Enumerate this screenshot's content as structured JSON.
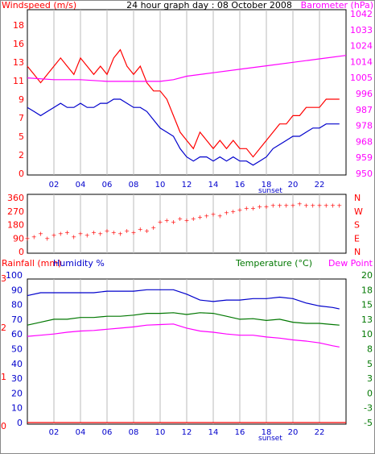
{
  "colors": {
    "wind": "#ff0000",
    "gust_avg": "#0000cc",
    "barometer": "#ff00ff",
    "direction": "#ff0000",
    "humidity": "#0000cc",
    "temperature": "#007700",
    "dewpoint": "#ff00ff",
    "rainfall": "#ff0000",
    "grid": "#bbbbbb",
    "right_axis_green": "#007700"
  },
  "chart_data": [
    {
      "type": "line",
      "title": "24 hour graph day : 08 October 2008",
      "left_axis_label": "Windspeed (m/s)",
      "right_axis_label": "Barometer (hPa)",
      "left_ticks": [
        "18",
        "16",
        "13",
        "11",
        "9",
        "7",
        "5",
        "2",
        "0"
      ],
      "left_range": [
        0,
        18
      ],
      "right_ticks": [
        "1042",
        "1033",
        "1024",
        "1014",
        "1005",
        "996",
        "987",
        "978",
        "968",
        "959",
        "950"
      ],
      "right_range": [
        950,
        1042
      ],
      "x_ticks": [
        "02",
        "04",
        "06",
        "08",
        "10",
        "12",
        "14",
        "16",
        "18",
        "20",
        "22"
      ],
      "x_range_hours": [
        0,
        24
      ],
      "sunset_label": "sunset",
      "sunset_hour": 18.3,
      "series": [
        {
          "name": "Windspeed",
          "hours": [
            0,
            0.5,
            1,
            1.5,
            2,
            2.5,
            3,
            3.5,
            4,
            4.5,
            5,
            5.5,
            6,
            6.5,
            7,
            7.5,
            8,
            8.5,
            9,
            9.5,
            10,
            10.5,
            11,
            11.5,
            12,
            12.5,
            13,
            13.5,
            14,
            14.5,
            15,
            15.5,
            16,
            16.5,
            17,
            17.5,
            18,
            18.5,
            19,
            19.5,
            20,
            20.5,
            21,
            21.5,
            22,
            22.5,
            23,
            23.5
          ],
          "values": [
            13,
            12,
            11,
            12,
            13,
            14,
            13,
            12,
            14,
            13,
            12,
            13,
            12,
            14,
            15,
            13,
            12,
            13,
            11,
            10,
            10,
            9,
            7,
            5,
            4,
            3,
            5,
            4,
            3,
            4,
            3,
            4,
            3,
            3,
            2,
            3,
            4,
            5,
            6,
            6,
            7,
            7,
            8,
            8,
            8,
            9,
            9,
            9
          ]
        },
        {
          "name": "Average wind",
          "hours": [
            0,
            0.5,
            1,
            1.5,
            2,
            2.5,
            3,
            3.5,
            4,
            4.5,
            5,
            5.5,
            6,
            6.5,
            7,
            7.5,
            8,
            8.5,
            9,
            9.5,
            10,
            10.5,
            11,
            11.5,
            12,
            12.5,
            13,
            13.5,
            14,
            14.5,
            15,
            15.5,
            16,
            16.5,
            17,
            17.5,
            18,
            18.5,
            19,
            19.5,
            20,
            20.5,
            21,
            21.5,
            22,
            22.5,
            23,
            23.5
          ],
          "values": [
            8,
            7.5,
            7,
            7.5,
            8,
            8.5,
            8,
            8,
            8.5,
            8,
            8,
            8.5,
            8.5,
            9,
            9,
            8.5,
            8,
            8,
            7.5,
            6.5,
            5.5,
            5,
            4.5,
            3,
            2,
            1.5,
            2,
            2,
            1.5,
            2,
            1.5,
            2,
            1.5,
            1.5,
            1,
            1.5,
            2,
            3,
            3.5,
            4,
            4.5,
            4.5,
            5,
            5.5,
            5.5,
            6,
            6,
            6
          ]
        },
        {
          "name": "Barometer",
          "axis": "right",
          "hours": [
            0,
            2,
            4,
            6,
            8,
            10,
            11,
            12,
            14,
            16,
            18,
            20,
            22,
            24
          ],
          "values": [
            1005,
            1004,
            1004,
            1003,
            1003,
            1003,
            1004,
            1006,
            1008,
            1010,
            1012,
            1014,
            1016,
            1018
          ]
        }
      ]
    },
    {
      "type": "scatter",
      "left_ticks": [
        "360",
        "270",
        "180",
        "90",
        "0"
      ],
      "left_range": [
        0,
        360
      ],
      "right_ticks": [
        "N",
        "W",
        "S",
        "E",
        "N"
      ],
      "x_range_hours": [
        0,
        24
      ],
      "series": [
        {
          "name": "Wind direction",
          "hours": [
            0,
            0.5,
            1,
            1.5,
            2,
            2.5,
            3,
            3.5,
            4,
            4.5,
            5,
            5.5,
            6,
            6.5,
            7,
            7.5,
            8,
            8.5,
            9,
            9.5,
            10,
            10.5,
            11,
            11.5,
            12,
            12.5,
            13,
            13.5,
            14,
            14.5,
            15,
            15.5,
            16,
            16.5,
            17,
            17.5,
            18,
            18.5,
            19,
            19.5,
            20,
            20.5,
            21,
            21.5,
            22,
            22.5,
            23,
            23.5
          ],
          "values": [
            90,
            100,
            120,
            90,
            110,
            120,
            130,
            100,
            120,
            110,
            130,
            120,
            140,
            130,
            120,
            140,
            130,
            150,
            140,
            160,
            200,
            210,
            200,
            220,
            210,
            220,
            230,
            240,
            250,
            240,
            260,
            270,
            280,
            290,
            290,
            300,
            300,
            310,
            310,
            310,
            310,
            320,
            310,
            310,
            310,
            310,
            310,
            310
          ]
        }
      ]
    },
    {
      "type": "line",
      "left_axis_label": "Rainfall (mm)",
      "left_axis_label2": "Humidity %",
      "right_axis_label": "Temperature (°C)",
      "right_axis_label2": "Dew Point",
      "rain_ticks": [
        "3",
        "2",
        "1",
        "0"
      ],
      "humidity_ticks": [
        "100",
        "90",
        "80",
        "70",
        "60",
        "50",
        "40",
        "30",
        "20",
        "10",
        "0"
      ],
      "humidity_range": [
        0,
        100
      ],
      "temp_ticks": [
        "20",
        "18",
        "15",
        "13",
        "10",
        "8",
        "5",
        "3",
        "0",
        "-3",
        "-5"
      ],
      "temp_range": [
        -5,
        20
      ],
      "x_ticks": [
        "02",
        "04",
        "06",
        "08",
        "10",
        "12",
        "14",
        "16",
        "18",
        "20",
        "22"
      ],
      "x_range_hours": [
        0,
        24
      ],
      "sunset_label": "sunset",
      "series": [
        {
          "name": "Humidity",
          "unit": "%",
          "hours": [
            0,
            1,
            2,
            3,
            4,
            5,
            6,
            7,
            8,
            9,
            10,
            11,
            12,
            13,
            14,
            15,
            16,
            17,
            18,
            19,
            20,
            21,
            22,
            23,
            23.5
          ],
          "values": [
            86,
            88,
            88,
            88,
            88,
            88,
            89,
            89,
            89,
            90,
            90,
            90,
            87,
            83,
            82,
            83,
            83,
            84,
            84,
            85,
            84,
            81,
            79,
            78,
            77
          ]
        },
        {
          "name": "Temperature",
          "unit": "°C",
          "hours": [
            0,
            1,
            2,
            3,
            4,
            5,
            6,
            7,
            8,
            9,
            10,
            11,
            12,
            13,
            14,
            15,
            16,
            17,
            18,
            19,
            20,
            21,
            22,
            23,
            23.5
          ],
          "values": [
            11.5,
            12.0,
            12.5,
            12.5,
            12.8,
            12.8,
            13.0,
            13.0,
            13.2,
            13.5,
            13.5,
            13.6,
            13.3,
            13.6,
            13.5,
            13.0,
            12.5,
            12.6,
            12.3,
            12.5,
            12.0,
            11.8,
            11.8,
            11.6,
            11.5
          ]
        },
        {
          "name": "Dew Point",
          "unit": "°C",
          "hours": [
            0,
            1,
            2,
            3,
            4,
            5,
            6,
            7,
            8,
            9,
            10,
            11,
            12,
            13,
            14,
            15,
            16,
            17,
            18,
            19,
            20,
            21,
            22,
            23,
            23.5
          ],
          "values": [
            9.6,
            9.8,
            10.0,
            10.3,
            10.5,
            10.6,
            10.8,
            11.0,
            11.2,
            11.5,
            11.6,
            11.7,
            11.0,
            10.5,
            10.3,
            10.0,
            9.8,
            9.8,
            9.5,
            9.3,
            9.0,
            8.8,
            8.5,
            8.0,
            7.8
          ]
        },
        {
          "name": "Rainfall",
          "unit": "mm",
          "hours": [
            0,
            24
          ],
          "values": [
            0,
            0
          ]
        }
      ]
    }
  ]
}
